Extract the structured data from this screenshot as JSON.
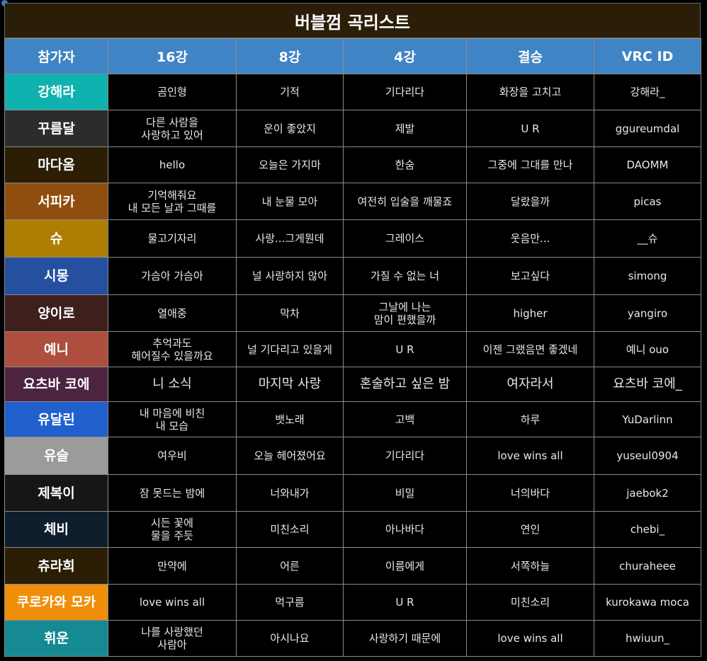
{
  "title": "버블껌 곡리스트",
  "headers": [
    "참가자",
    "16강",
    "8강",
    "4강",
    "결승",
    "VRC ID"
  ],
  "rows": [
    {
      "name": "강해라",
      "color": "#0fb2ae",
      "cells": [
        [
          "곰인형"
        ],
        [
          "기적"
        ],
        [
          "기다리다"
        ],
        [
          "화장을 고치고"
        ],
        [
          "강해라_"
        ]
      ]
    },
    {
      "name": "꾸름달",
      "color": "#2c2c2c",
      "cells": [
        [
          "다른 사람을",
          "사랑하고 있어"
        ],
        [
          "운이 좋았지"
        ],
        [
          "제발"
        ],
        [
          "U R"
        ],
        [
          "ggureumdal"
        ]
      ]
    },
    {
      "name": "마다옴",
      "color": "#2b1e05",
      "cells": [
        [
          "hello"
        ],
        [
          "오늘은 가지마"
        ],
        [
          "한숨"
        ],
        [
          "그중에 그대를 만나"
        ],
        [
          "DAOMM"
        ]
      ]
    },
    {
      "name": "서피카",
      "color": "#904e0e",
      "cells": [
        [
          "기억해줘요",
          "내 모든 날과 그때를"
        ],
        [
          "내 눈물 모아"
        ],
        [
          "여전히 입술을 깨물죠"
        ],
        [
          "달랐을까"
        ],
        [
          "picas"
        ]
      ]
    },
    {
      "name": "슈",
      "color": "#ae7e04",
      "cells": [
        [
          "물고기자리"
        ],
        [
          "사랑...그게뭔데"
        ],
        [
          "그레이스"
        ],
        [
          "웃음만..."
        ],
        [
          "__슈"
        ]
      ]
    },
    {
      "name": "시몽",
      "color": "#2550a0",
      "cells": [
        [
          "가슴아 가슴아"
        ],
        [
          "널 사랑하지 않아"
        ],
        [
          "가질 수 없는 너"
        ],
        [
          "보고싶다"
        ],
        [
          "simong"
        ]
      ]
    },
    {
      "name": "양이로",
      "color": "#3f1f1c",
      "cells": [
        [
          "열애중"
        ],
        [
          "막차"
        ],
        [
          "그날에 나는",
          "맘이 편했을까"
        ],
        [
          "higher"
        ],
        [
          "yangiro"
        ]
      ]
    },
    {
      "name": "예니",
      "color": "#ad4e3e",
      "cells": [
        [
          "추억과도",
          "헤어질수 있을까요"
        ],
        [
          "널 기다리고 있을게"
        ],
        [
          "U R"
        ],
        [
          "이젠 그랬음면 좋겠네"
        ],
        [
          "예니 ouo"
        ]
      ]
    },
    {
      "name": "요츠바 코에",
      "color": "#4d2440",
      "big": true,
      "cells": [
        [
          "니 소식"
        ],
        [
          "마지막 사랑"
        ],
        [
          "혼술하고 싶은 밤"
        ],
        [
          "여자라서"
        ],
        [
          "요츠바 코에_"
        ]
      ]
    },
    {
      "name": "유달린",
      "color": "#1f60cc",
      "cells": [
        [
          "내 마음에 비친",
          "내 모습"
        ],
        [
          "뱃노래"
        ],
        [
          "고백"
        ],
        [
          "하루"
        ],
        [
          "YuDarlinn"
        ]
      ]
    },
    {
      "name": "유슬",
      "color": "#9b9b9b",
      "cells": [
        [
          "여우비"
        ],
        [
          "오늘 헤어졌어요"
        ],
        [
          "기다리다"
        ],
        [
          "love wins all"
        ],
        [
          "yuseul0904"
        ]
      ]
    },
    {
      "name": "제복이",
      "color": "#161616",
      "cells": [
        [
          "잠 못드는 밤에"
        ],
        [
          "너와내가"
        ],
        [
          "비밀"
        ],
        [
          "너의바다"
        ],
        [
          "jaebok2"
        ]
      ]
    },
    {
      "name": "체비",
      "color": "#0f1e2d",
      "cells": [
        [
          "시든 꽃에",
          "물을 주듯"
        ],
        [
          "미친소리"
        ],
        [
          "아나바다"
        ],
        [
          "연인"
        ],
        [
          "chebi_"
        ]
      ]
    },
    {
      "name": "츄라희",
      "color": "#2b1e05",
      "cells": [
        [
          "만약에"
        ],
        [
          "어른"
        ],
        [
          "이름에게"
        ],
        [
          "서쪽하늘"
        ],
        [
          "churaheee"
        ]
      ]
    },
    {
      "name": "쿠로카와 모카",
      "color": "#f08e0a",
      "cells": [
        [
          "love wins all"
        ],
        [
          "먹구름"
        ],
        [
          "U R"
        ],
        [
          "미친소리"
        ],
        [
          "kurokawa moca"
        ]
      ]
    },
    {
      "name": "휘운",
      "color": "#158a92",
      "cells": [
        [
          "나를 사랑했던",
          "사람아"
        ],
        [
          "아시나요"
        ],
        [
          "사랑하기 때문에"
        ],
        [
          "love wins all"
        ],
        [
          "hwiuun_"
        ]
      ]
    }
  ]
}
